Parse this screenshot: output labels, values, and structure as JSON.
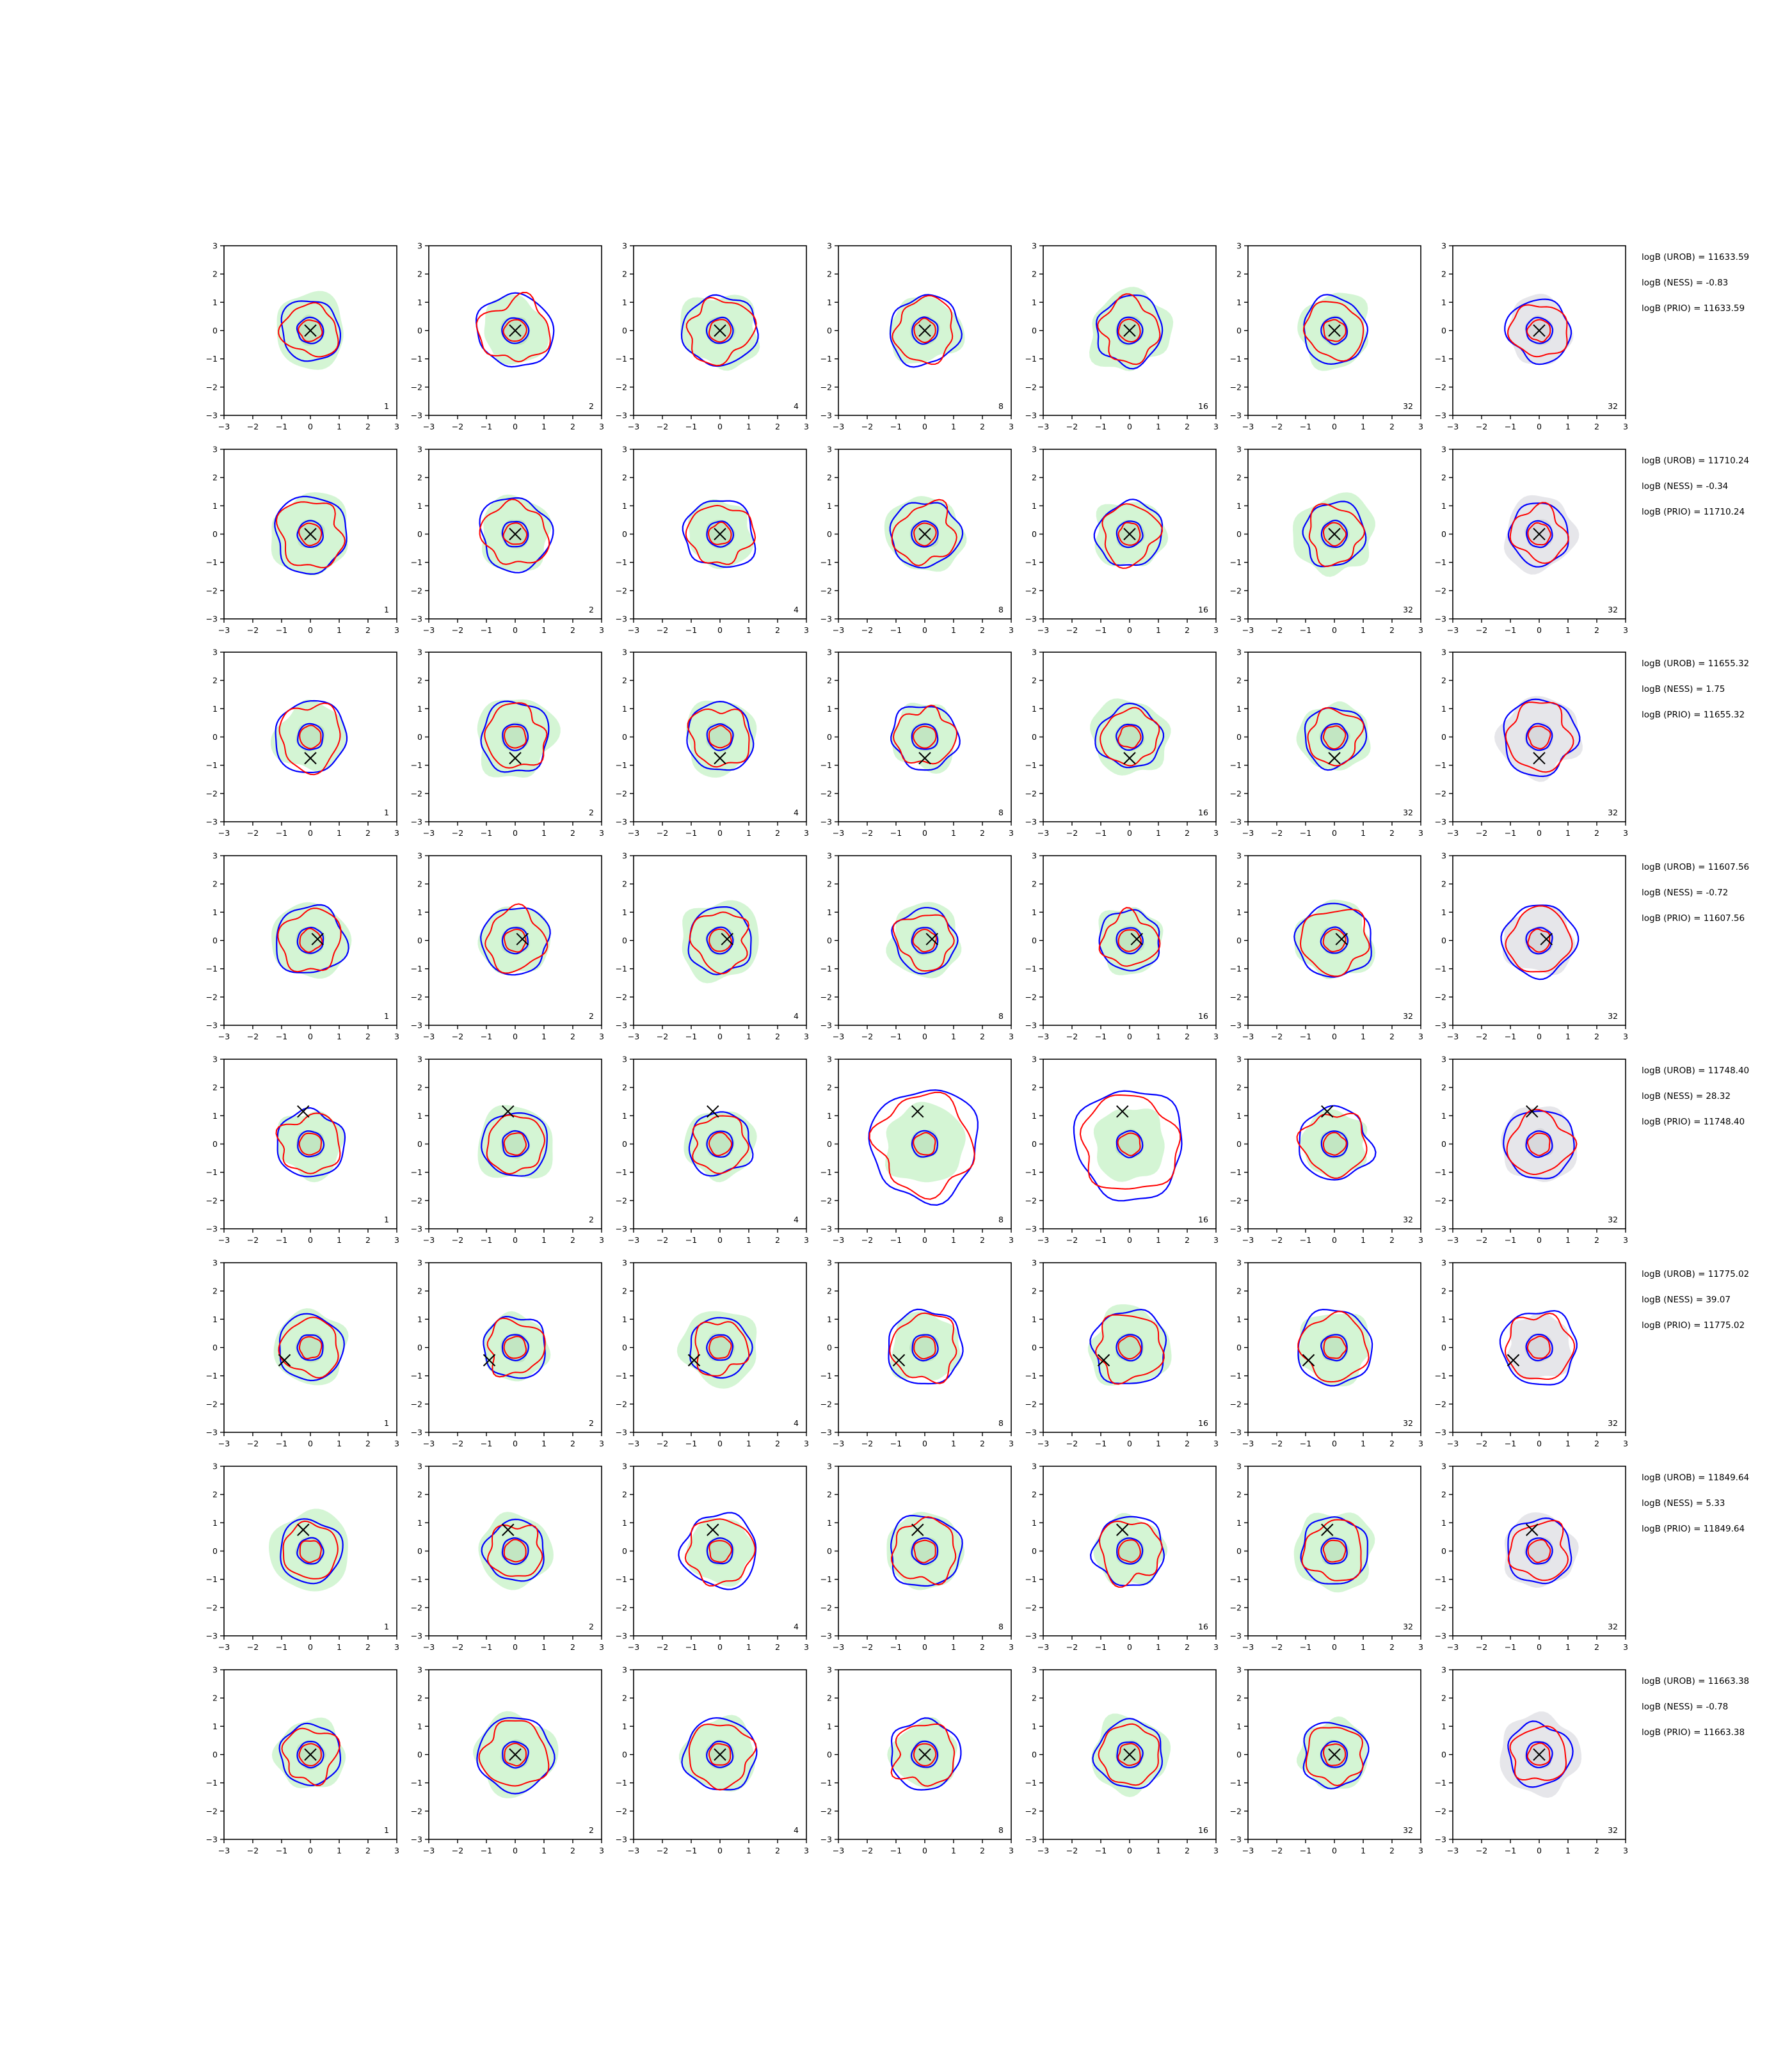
{
  "chart_data": {
    "type": "contour-grid",
    "rows": 8,
    "cols": 7,
    "xlim": [
      -3,
      3
    ],
    "ylim": [
      -3,
      3
    ],
    "xticks": [
      "−3",
      "−2",
      "−1",
      "0",
      "1",
      "2",
      "3"
    ],
    "yticks": [
      "3",
      "2",
      "1",
      "0",
      "−1",
      "−2",
      "−3"
    ],
    "column_counts": [
      "1",
      "2",
      "4",
      "8",
      "16",
      "32",
      "32"
    ],
    "colors": {
      "fill_light": "#d4f5d4",
      "fill_dark": "#c2e6c2",
      "fill_gray": "#e6e6ea",
      "fill_gray_dark": "#d8d8dc",
      "contour_blue": "#0000ff",
      "contour_red": "#ff0000",
      "marker": "#000000"
    },
    "row_data": [
      {
        "marker": [
          0.0,
          0.0
        ],
        "stats": [
          "logB (UROB) = 11633.59",
          "logB (NESS) = -0.83",
          "logB (PRIO) = 11633.59"
        ]
      },
      {
        "marker": [
          0.0,
          0.0
        ],
        "stats": [
          "logB (UROB) = 11710.24",
          "logB (NESS) = -0.34",
          "logB (PRIO) = 11710.24"
        ]
      },
      {
        "marker": [
          0.0,
          -0.75
        ],
        "stats": [
          "logB (UROB) = 11655.32",
          "logB (NESS) = 1.75",
          "logB (PRIO) = 11655.32"
        ]
      },
      {
        "marker": [
          0.25,
          0.05
        ],
        "stats": [
          "logB (UROB) = 11607.56",
          "logB (NESS) = -0.72",
          "logB (PRIO) = 11607.56"
        ]
      },
      {
        "marker": [
          -0.25,
          1.15
        ],
        "stats": [
          "logB (UROB) = 11748.40",
          "logB (NESS) = 28.32",
          "logB (PRIO) = 11748.40"
        ]
      },
      {
        "marker": [
          -0.9,
          -0.45
        ],
        "stats": [
          "logB (UROB) = 11775.02",
          "logB (NESS) = 39.07",
          "logB (PRIO) = 11775.02"
        ]
      },
      {
        "marker": [
          -0.25,
          0.75
        ],
        "stats": [
          "logB (UROB) = 11849.64",
          "logB (NESS) = 5.33",
          "logB (PRIO) = 11849.64"
        ]
      },
      {
        "marker": [
          0.0,
          0.0
        ],
        "stats": [
          "logB (UROB) = 11663.38",
          "logB (NESS) = -0.78",
          "logB (PRIO) = 11663.38"
        ]
      }
    ]
  }
}
